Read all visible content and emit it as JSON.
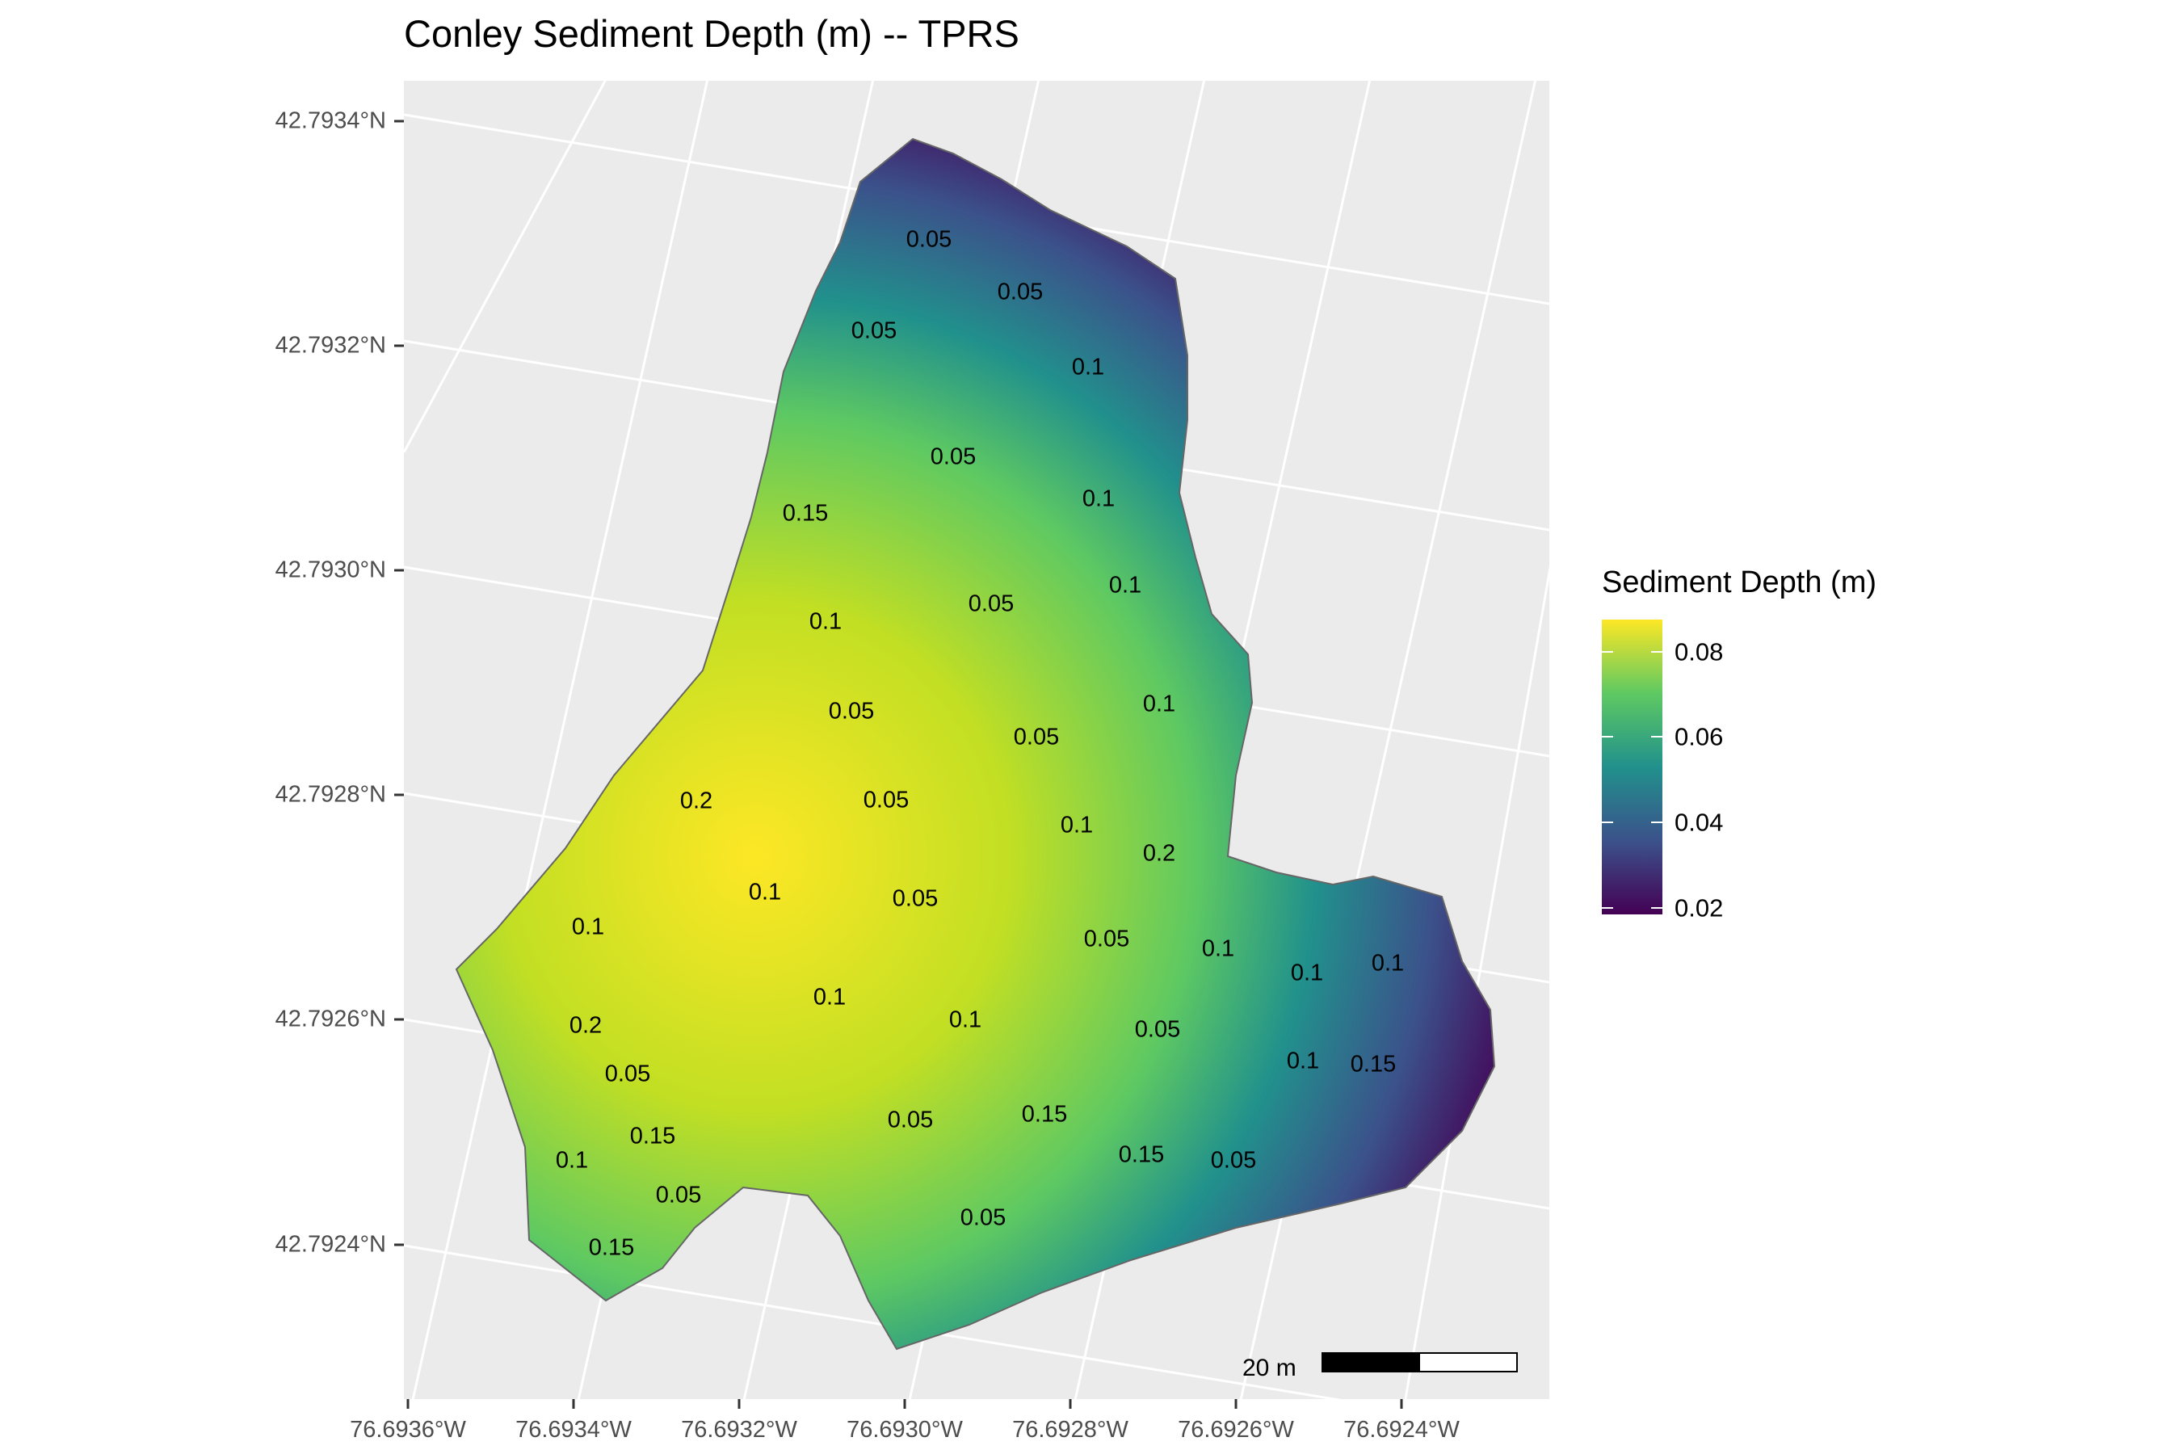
{
  "title": "Conley Sediment Depth (m) -- TPRS",
  "y_axis_labels": [
    "42.7934°N",
    "42.7932°N",
    "42.7930°N",
    "42.7928°N",
    "42.7926°N",
    "42.7924°N"
  ],
  "x_axis_labels": [
    "76.6936°W",
    "76.6934°W",
    "76.6932°W",
    "76.6930°W",
    "76.6928°W",
    "76.6926°W",
    "76.6924°W"
  ],
  "legend": {
    "title": "Sediment Depth (m)",
    "labels": [
      "0.08",
      "0.06",
      "0.04",
      "0.02"
    ],
    "colormap": "viridis",
    "colors": [
      "#440154",
      "#3b528b",
      "#21918c",
      "#5ec962",
      "#fde725"
    ]
  },
  "contour_labels": [
    "0.05",
    "0.05",
    "0.05",
    "0.1",
    "0.05",
    "0.1",
    "0.15",
    "0.1",
    "0.1",
    "0.05",
    "0.1",
    "0.05",
    "0.05",
    "0.1",
    "0.2",
    "0.05",
    "0.1",
    "0.2",
    "0.1",
    "0.05",
    "0.05",
    "0.1",
    "0.1",
    "0.1",
    "0.1",
    "0.1",
    "0.2",
    "0.05",
    "0.15",
    "0.1",
    "0.05",
    "0.05",
    "0.15",
    "0.15",
    "0.05",
    "0.15",
    "0.1",
    "0.05",
    "0.05",
    "0.15"
  ],
  "scale_bar": {
    "label": "20 m"
  },
  "background_color": "#ebebeb",
  "grid_color": "#ffffff"
}
